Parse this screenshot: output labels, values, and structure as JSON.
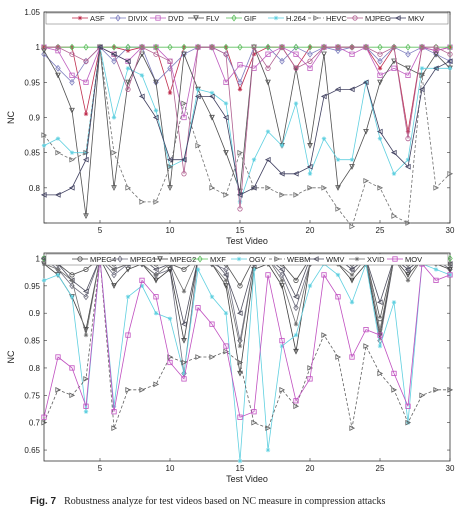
{
  "caption": {
    "label": "Fig. 7",
    "text": "Robustness analyze for test videos based on NC measure in compression attacks"
  },
  "chart_data": [
    {
      "type": "line",
      "xlabel": "Test Video",
      "ylabel": "NC",
      "xlim": [
        1,
        30
      ],
      "ylim": [
        0.75,
        1.05
      ],
      "xticks": [
        5,
        10,
        15,
        20,
        25,
        30
      ],
      "yticks": [
        0.75,
        0.8,
        0.85,
        0.9,
        0.95,
        1,
        1.05
      ],
      "ytick_labels": [
        "",
        "0.8",
        "0.85",
        "0.9",
        "0.95",
        "1",
        "1.05"
      ],
      "legend_position": "top",
      "x": [
        1,
        2,
        3,
        4,
        5,
        6,
        7,
        8,
        9,
        10,
        11,
        12,
        13,
        14,
        15,
        16,
        17,
        18,
        19,
        20,
        21,
        22,
        23,
        24,
        25,
        26,
        27,
        28,
        29,
        30
      ],
      "series": [
        {
          "name": "ASF",
          "color": "#c03050",
          "marker": "star",
          "values": [
            1,
            1,
            1,
            0.905,
            1,
            1,
            0.995,
            1,
            1,
            0.935,
            1,
            1,
            1,
            1,
            0.94,
            0.99,
            1,
            1,
            0.97,
            1,
            1,
            1,
            1,
            1,
            0.97,
            1,
            0.88,
            1,
            0.995,
            1
          ]
        },
        {
          "name": "DIVIX",
          "color": "#8080c0",
          "marker": "diamond",
          "values": [
            0.99,
            0.97,
            0.95,
            0.98,
            1,
            0.98,
            1,
            1,
            0.95,
            0.97,
            0.99,
            1,
            1,
            0.99,
            0.95,
            1,
            1,
            0.98,
            1,
            0.99,
            1,
            0.995,
            1,
            1,
            0.98,
            1,
            0.99,
            1,
            0.99,
            0.98
          ]
        },
        {
          "name": "DVD",
          "color": "#c060c0",
          "marker": "square",
          "values": [
            1,
            0.995,
            0.96,
            0.95,
            1,
            0.99,
            0.98,
            1,
            1,
            0.98,
            0.9,
            1,
            1,
            0.95,
            0.975,
            0.97,
            0.99,
            1,
            0.99,
            0.97,
            1,
            1,
            0.99,
            1,
            0.96,
            0.97,
            0.96,
            1,
            0.995,
            1
          ]
        },
        {
          "name": "FLV",
          "color": "#505050",
          "marker": "tri-down",
          "values": [
            0.995,
            0.96,
            0.91,
            0.76,
            1,
            0.8,
            0.95,
            0.99,
            0.95,
            0.8,
            0.99,
            0.94,
            0.9,
            0.85,
            0.795,
            1,
            0.95,
            0.86,
            0.97,
            0.86,
            0.99,
            0.8,
            0.83,
            0.88,
            0.95,
            0.98,
            0.97,
            0.96,
            0.99,
            0.97
          ]
        },
        {
          "name": "GIF",
          "color": "#60c060",
          "marker": "diamond",
          "values": [
            1,
            1,
            1,
            1,
            1,
            1,
            1,
            1,
            1,
            1,
            1,
            1,
            1,
            1,
            1,
            1,
            1,
            1,
            1,
            1,
            1,
            1,
            1,
            1,
            1,
            1,
            1,
            1,
            1,
            1
          ]
        },
        {
          "name": "H.264",
          "color": "#60d0e0",
          "marker": "star",
          "values": [
            0.86,
            0.87,
            0.85,
            0.85,
            1,
            0.9,
            0.97,
            0.96,
            0.91,
            0.83,
            0.84,
            0.94,
            0.935,
            0.92,
            0.78,
            0.84,
            0.88,
            0.86,
            0.92,
            0.82,
            0.87,
            0.84,
            0.84,
            0.95,
            0.87,
            0.82,
            0.84,
            0.97,
            0.97,
            0.97
          ]
        },
        {
          "name": "HEVC",
          "color": "#707070",
          "marker": "tri-right",
          "values": [
            0.875,
            0.85,
            0.84,
            0.85,
            1,
            0.85,
            0.8,
            0.78,
            0.78,
            0.83,
            0.92,
            0.86,
            0.8,
            0.79,
            0.85,
            0.8,
            0.8,
            0.79,
            0.79,
            0.8,
            0.8,
            0.77,
            0.745,
            0.81,
            0.8,
            0.76,
            0.75,
            0.96,
            0.8,
            0.82
          ]
        },
        {
          "name": "MJPEG",
          "color": "#b06090",
          "marker": "circle",
          "values": [
            1,
            1,
            0.99,
            0.98,
            1,
            0.99,
            0.94,
            1,
            0.99,
            0.98,
            0.82,
            1,
            1,
            0.99,
            0.77,
            1,
            0.97,
            1,
            0.97,
            0.98,
            1,
            1,
            1,
            1,
            0.99,
            1,
            0.87,
            1,
            1,
            0.99
          ]
        },
        {
          "name": "MKV",
          "color": "#404060",
          "marker": "tri-left",
          "values": [
            0.79,
            0.79,
            0.8,
            0.84,
            1,
            0.99,
            0.98,
            0.93,
            0.9,
            0.84,
            0.84,
            0.93,
            0.93,
            0.9,
            0.79,
            0.8,
            0.84,
            0.82,
            0.82,
            0.83,
            0.93,
            0.94,
            0.94,
            0.95,
            0.88,
            0.85,
            0.83,
            0.94,
            0.97,
            0.98
          ]
        }
      ]
    },
    {
      "type": "line",
      "xlabel": "Test Video",
      "ylabel": "NC",
      "xlim": [
        1,
        30
      ],
      "ylim": [
        0.63,
        1.01
      ],
      "xticks": [
        5,
        10,
        15,
        20,
        25,
        30
      ],
      "yticks": [
        0.65,
        0.7,
        0.75,
        0.8,
        0.85,
        0.9,
        0.95,
        1
      ],
      "ytick_labels": [
        "0.65",
        "0.7",
        "0.75",
        "0.8",
        "0.85",
        "0.9",
        "0.95",
        "1"
      ],
      "legend_position": "top",
      "x": [
        1,
        2,
        3,
        4,
        5,
        6,
        7,
        8,
        9,
        10,
        11,
        12,
        13,
        14,
        15,
        16,
        17,
        18,
        19,
        20,
        21,
        22,
        23,
        24,
        25,
        26,
        27,
        28,
        29,
        30
      ],
      "series": [
        {
          "name": "MPEG4",
          "color": "#505050",
          "marker": "circle",
          "values": [
            1,
            0.99,
            0.97,
            0.98,
            1,
            0.99,
            1,
            1,
            0.99,
            0.99,
            0.98,
            1,
            1,
            0.99,
            0.95,
            1,
            1,
            0.99,
            0.96,
            1,
            1,
            1,
            0.99,
            1,
            0.89,
            1,
            0.99,
            1,
            1,
            0.99
          ]
        },
        {
          "name": "MPEG1",
          "color": "#707080",
          "marker": "diamond",
          "values": [
            1,
            0.98,
            0.95,
            0.93,
            1,
            0.97,
            0.99,
            0.99,
            0.97,
            0.98,
            0.79,
            1,
            0.99,
            0.98,
            0.85,
            0.99,
            1,
            0.97,
            0.91,
            0.99,
            1,
            1,
            0.98,
            1,
            0.85,
            1,
            0.98,
            1,
            1,
            0.98
          ]
        },
        {
          "name": "MPEG2",
          "color": "#404040",
          "marker": "tri-down",
          "values": [
            0.99,
            0.97,
            0.93,
            0.87,
            1,
            0.95,
            0.98,
            0.99,
            0.96,
            0.98,
            0.85,
            1,
            0.99,
            0.95,
            0.79,
            0.98,
            0.99,
            0.95,
            0.83,
            0.99,
            1,
            0.99,
            0.96,
            0.99,
            0.86,
            1,
            0.97,
            1,
            0.99,
            0.98
          ]
        },
        {
          "name": "MXF",
          "color": "#60c060",
          "marker": "diamond",
          "values": [
            1,
            1,
            1,
            1,
            1,
            1,
            1,
            1,
            1,
            1,
            1,
            1,
            1,
            1,
            1,
            1,
            1,
            1,
            1,
            1,
            1,
            1,
            1,
            1,
            1,
            1,
            1,
            1,
            1,
            1
          ]
        },
        {
          "name": "OGV",
          "color": "#60d0e0",
          "marker": "star",
          "values": [
            0.96,
            0.97,
            0.93,
            0.72,
            1,
            0.73,
            0.93,
            0.95,
            0.9,
            0.89,
            0.79,
            0.98,
            0.93,
            0.9,
            0.63,
            0.98,
            0.65,
            0.84,
            0.86,
            0.95,
            0.99,
            0.97,
            0.92,
            0.99,
            0.84,
            0.92,
            0.7,
            0.99,
            0.98,
            0.97
          ]
        },
        {
          "name": "WEBM",
          "color": "#606060",
          "marker": "tri-right",
          "values": [
            0.7,
            0.76,
            0.75,
            0.78,
            1,
            0.69,
            0.76,
            0.76,
            0.77,
            0.82,
            0.81,
            0.82,
            0.82,
            0.83,
            0.81,
            0.7,
            0.69,
            0.76,
            0.73,
            0.8,
            0.86,
            0.82,
            0.69,
            0.84,
            0.79,
            0.76,
            0.7,
            0.75,
            0.76,
            0.76
          ]
        },
        {
          "name": "WMV",
          "color": "#505060",
          "marker": "tri-left",
          "values": [
            1,
            0.99,
            0.96,
            0.94,
            1,
            0.98,
            0.99,
            1,
            0.98,
            0.99,
            0.88,
            1,
            1,
            0.97,
            0.9,
            0.99,
            1,
            0.98,
            0.93,
            1,
            1,
            1,
            0.98,
            1,
            0.92,
            1,
            0.98,
            1,
            1,
            0.99
          ]
        },
        {
          "name": "XVID",
          "color": "#707070",
          "marker": "star",
          "values": [
            0.99,
            0.98,
            0.96,
            0.86,
            1,
            0.98,
            0.99,
            0.99,
            0.97,
            0.99,
            0.94,
            1,
            0.99,
            0.96,
            0.84,
            0.99,
            1,
            0.96,
            0.88,
            0.99,
            1,
            0.99,
            0.97,
            1,
            0.87,
            1,
            0.96,
            1,
            0.99,
            0.99
          ]
        },
        {
          "name": "MOV",
          "color": "#c050c0",
          "marker": "square",
          "values": [
            0.71,
            0.82,
            0.8,
            0.73,
            1,
            0.72,
            0.86,
            0.96,
            0.93,
            0.81,
            0.78,
            0.91,
            0.88,
            0.84,
            0.71,
            0.72,
            0.97,
            0.85,
            0.74,
            0.78,
            0.97,
            0.93,
            0.82,
            0.87,
            0.86,
            0.79,
            0.73,
            0.99,
            0.96,
            0.97
          ]
        }
      ]
    }
  ]
}
